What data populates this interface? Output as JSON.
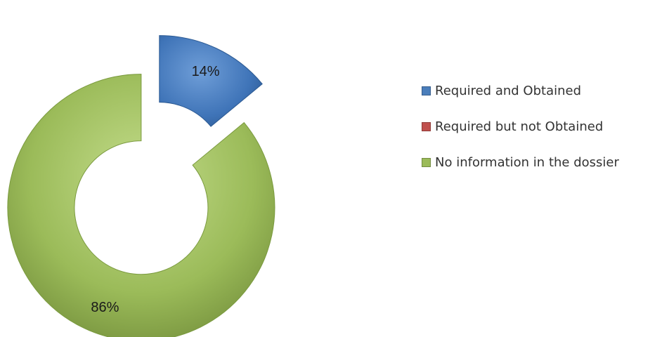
{
  "chart_data": {
    "type": "pie",
    "variant": "exploded-donut",
    "title": "",
    "categories": [
      "Required and Obtained",
      "Required but not Obtained",
      "No information in the dossier"
    ],
    "values": [
      14,
      0,
      86
    ],
    "value_labels": [
      "14%",
      "",
      "86%"
    ],
    "colors": [
      "#4a7ebb",
      "#c0504d",
      "#9bbb59"
    ],
    "legend_position": "right"
  }
}
